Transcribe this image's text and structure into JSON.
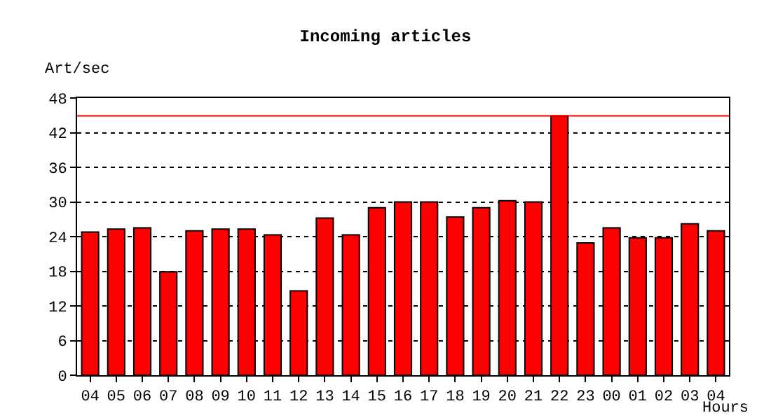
{
  "chart_data": {
    "type": "bar",
    "title": "Incoming articles",
    "xlabel": "Hours",
    "ylabel": "Art/sec",
    "categories": [
      "04",
      "05",
      "06",
      "07",
      "08",
      "09",
      "10",
      "11",
      "12",
      "13",
      "14",
      "15",
      "16",
      "17",
      "18",
      "19",
      "20",
      "21",
      "22",
      "23",
      "00",
      "01",
      "02",
      "03",
      "04"
    ],
    "series": [
      {
        "color": "#ff0000",
        "values": [
          24.8,
          25.3,
          25.5,
          17.9,
          25.0,
          25.3,
          25.3,
          24.3,
          14.6,
          27.2,
          24.3,
          29.0,
          30.0,
          30.0,
          27.4,
          29.0,
          30.2,
          30.0,
          44.9,
          22.9,
          25.5,
          23.8,
          23.8,
          26.2,
          25.0
        ]
      }
    ],
    "ylim": [
      0,
      48
    ],
    "yticks": [
      0,
      6,
      12,
      18,
      24,
      30,
      36,
      42,
      48
    ],
    "grid": "y",
    "ref_lines": [
      {
        "axis": "y",
        "value": 44.9,
        "color": "#ff0000"
      }
    ]
  }
}
